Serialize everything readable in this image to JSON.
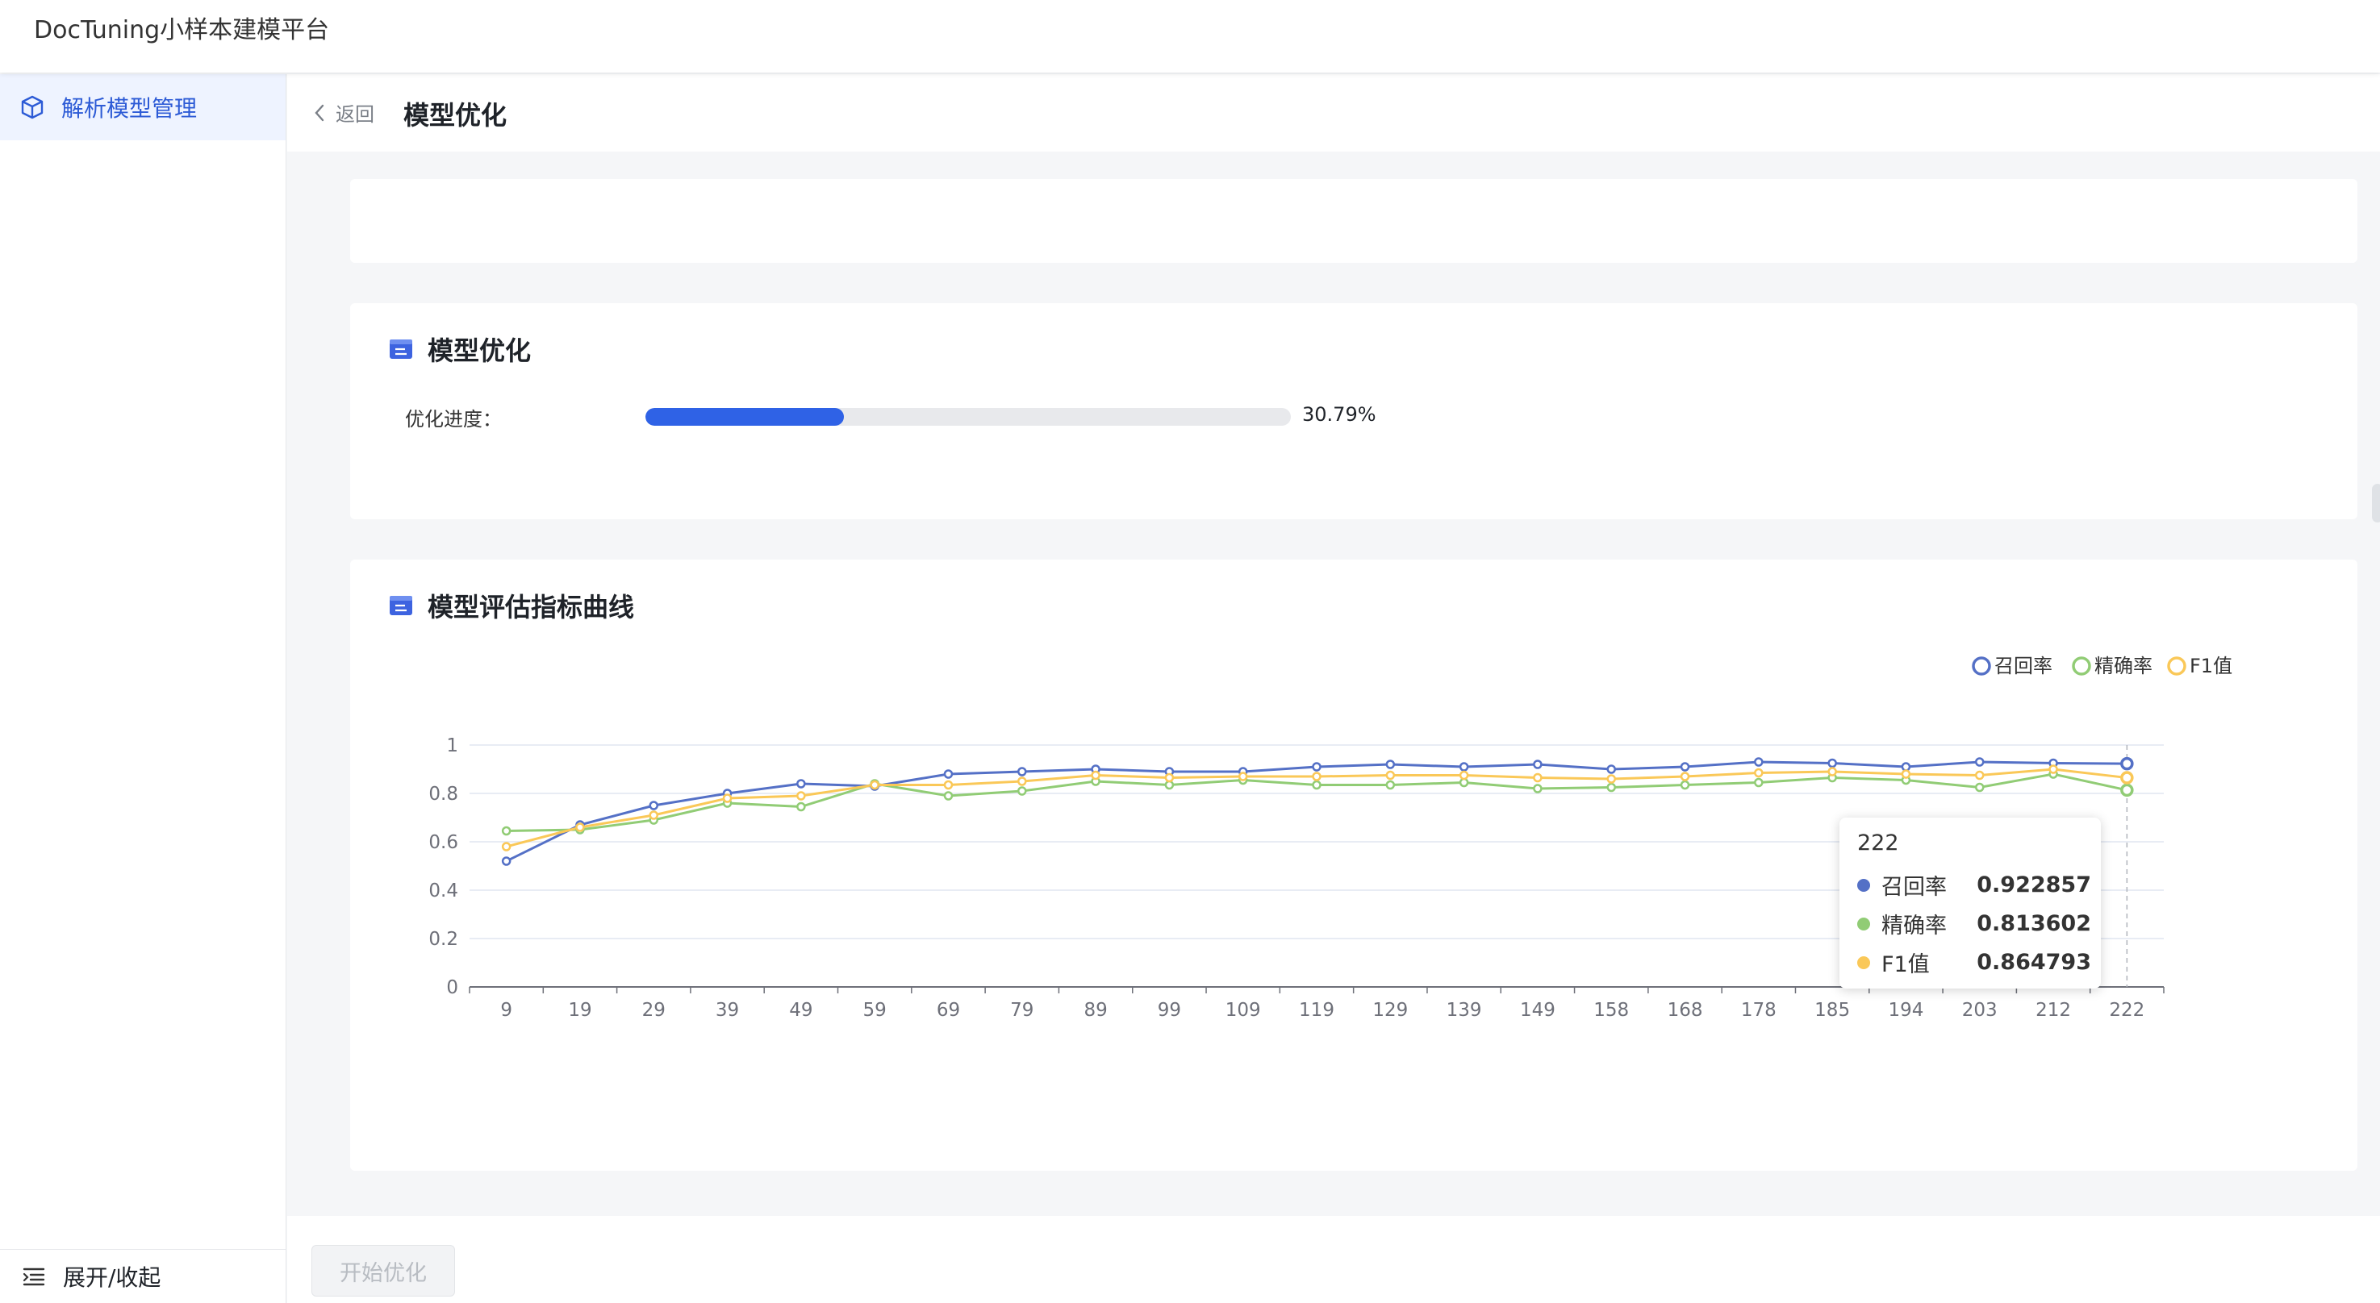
{
  "app": {
    "title": "DocTuning小样本建模平台"
  },
  "sidebar": {
    "items": [
      {
        "label": "解析模型管理",
        "icon": "cube-icon"
      }
    ],
    "collapse_label": "展开/收起"
  },
  "header": {
    "back_label": "返回",
    "title": "模型优化"
  },
  "optimize": {
    "section_title": "模型优化",
    "progress_label": "优化进度：",
    "progress_value": 0.3079,
    "progress_text": "30.79%"
  },
  "chart_section": {
    "title": "模型评估指标曲线"
  },
  "chart_data": {
    "type": "line",
    "x": [
      "9",
      "19",
      "29",
      "39",
      "49",
      "59",
      "69",
      "79",
      "89",
      "99",
      "109",
      "119",
      "129",
      "139",
      "149",
      "158",
      "168",
      "178",
      "185",
      "194",
      "203",
      "212",
      "222"
    ],
    "ylim": [
      0,
      1
    ],
    "yticks": [
      "0",
      "0.2",
      "0.4",
      "0.6",
      "0.8",
      "1"
    ],
    "grid": true,
    "legend_position": "top-right",
    "series": [
      {
        "name": "召回率",
        "color": "#5470c6",
        "values": [
          0.52,
          0.67,
          0.75,
          0.8,
          0.84,
          0.83,
          0.88,
          0.89,
          0.9,
          0.89,
          0.89,
          0.91,
          0.92,
          0.91,
          0.92,
          0.9,
          0.91,
          0.93,
          0.925,
          0.91,
          0.93,
          0.925,
          0.922857
        ]
      },
      {
        "name": "精确率",
        "color": "#91cc75",
        "values": [
          0.645,
          0.65,
          0.69,
          0.76,
          0.745,
          0.84,
          0.79,
          0.81,
          0.85,
          0.835,
          0.855,
          0.835,
          0.835,
          0.845,
          0.82,
          0.825,
          0.835,
          0.845,
          0.865,
          0.855,
          0.825,
          0.88,
          0.813602
        ]
      },
      {
        "name": "F1值",
        "color": "#fac858",
        "values": [
          0.58,
          0.66,
          0.71,
          0.78,
          0.79,
          0.835,
          0.835,
          0.85,
          0.875,
          0.865,
          0.87,
          0.87,
          0.875,
          0.875,
          0.865,
          0.86,
          0.87,
          0.885,
          0.89,
          0.88,
          0.875,
          0.9,
          0.864793
        ]
      }
    ],
    "tooltip": {
      "title": "222",
      "rows": [
        {
          "name": "召回率",
          "value": "0.922857",
          "color": "#5470c6"
        },
        {
          "name": "精确率",
          "value": "0.813602",
          "color": "#91cc75"
        },
        {
          "name": "F1值",
          "value": "0.864793",
          "color": "#fac858"
        }
      ]
    }
  },
  "footer": {
    "start_label": "开始优化"
  }
}
